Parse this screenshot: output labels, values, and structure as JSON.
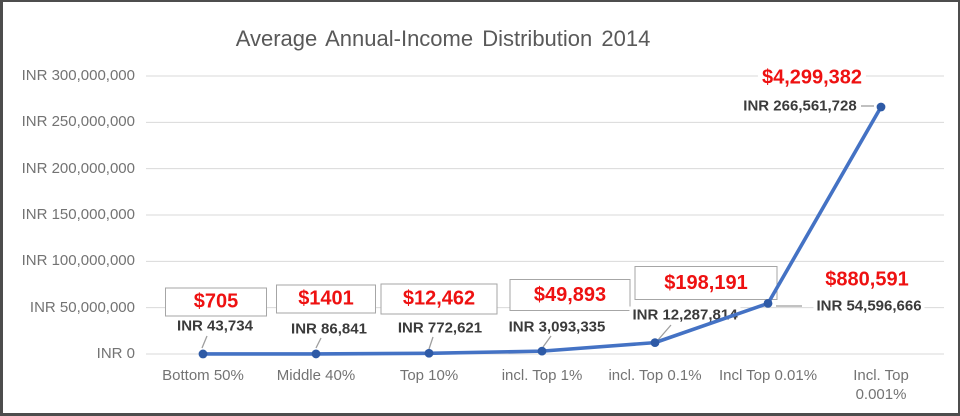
{
  "chart_data": {
    "type": "line",
    "title": "Average Annual-Income Distribution 2014",
    "categories": [
      "Bottom 50%",
      "Middle 40%",
      "Top 10%",
      "incl. Top 1%",
      "incl. Top 0.1%",
      "Incl Top 0.01%",
      "Incl. Top 0.001%"
    ],
    "series": [
      {
        "values": [
          43734,
          86841,
          772621,
          3093335,
          12287814,
          54596666,
          266561728
        ]
      }
    ],
    "point_labels_inr": [
      "INR 43,734",
      "INR 86,841",
      "INR 772,621",
      "INR 3,093,335",
      "INR 12,287,814",
      "INR 54,596,666",
      "INR 266,561,728"
    ],
    "point_labels_usd": [
      "$705",
      "$1401",
      "$12,462",
      "$49,893",
      "$198,191",
      "$880,591",
      "$4,299,382"
    ],
    "usd_values": [
      705,
      1401,
      12462,
      49893,
      198191,
      880591,
      4299382
    ],
    "y_axis": {
      "max": 300000000,
      "ticks": [
        {
          "label": "INR 0",
          "value": 0
        },
        {
          "label": "INR 50,000,000",
          "value": 50000000
        },
        {
          "label": "INR 100,000,000",
          "value": 100000000
        },
        {
          "label": "INR 150,000,000",
          "value": 150000000
        },
        {
          "label": "INR 200,000,000",
          "value": 200000000
        },
        {
          "label": "INR 250,000,000",
          "value": 250000000
        },
        {
          "label": "INR 300,000,000",
          "value": 300000000
        }
      ]
    },
    "ylim": [
      0,
      300000000
    ],
    "xlabel": "",
    "ylabel": "",
    "grid": true,
    "legend_position": "none",
    "colors": {
      "line": "#4472c4",
      "marker": "#2e5aa6",
      "usd_label": "#ee1111",
      "inr_label": "#3b3b3b",
      "axis_text": "#737373",
      "gridline": "#d9d9d9",
      "title": "#595959",
      "annotation_box_border": "#a6a6a6",
      "leader_line": "#9e9e9e",
      "frame_border": "#4d4d4d"
    }
  }
}
